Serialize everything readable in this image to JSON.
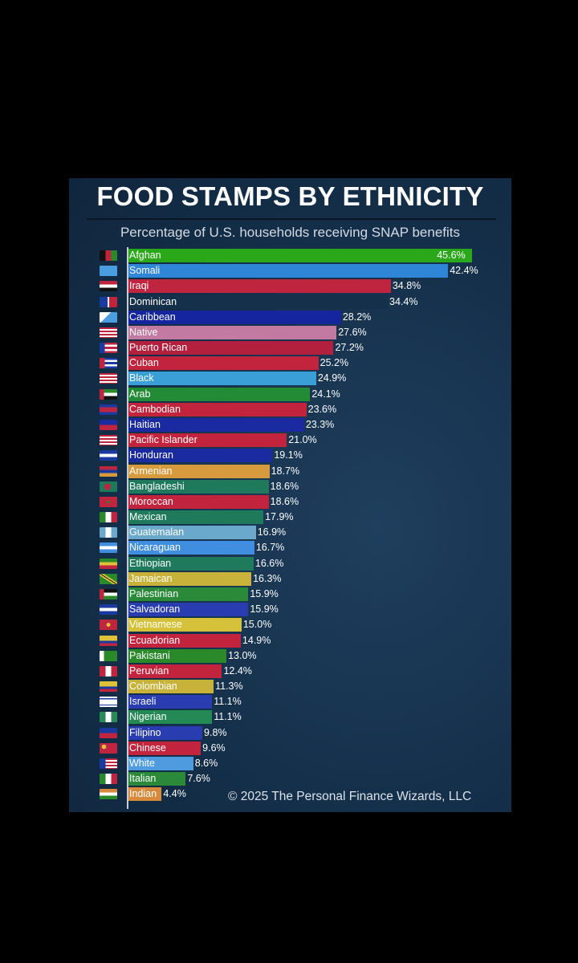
{
  "chart_data": {
    "type": "bar",
    "orientation": "horizontal",
    "title": "FOOD STAMPS BY ETHNICITY",
    "subtitle": "Percentage of U.S. households receiving SNAP benefits",
    "credit": "© 2025 The Personal Finance Wizards, LLC",
    "value_suffix": "%",
    "categories": [
      "Afghan",
      "Somali",
      "Iraqi",
      "Dominican",
      "Caribbean",
      "Native",
      "Puerto Rican",
      "Cuban",
      "Black",
      "Arab",
      "Cambodian",
      "Haitian",
      "Pacific Islander",
      "Honduran",
      "Armenian",
      "Bangladeshi",
      "Moroccan",
      "Mexican",
      "Guatemalan",
      "Nicaraguan",
      "Ethiopian",
      "Jamaican",
      "Palestinian",
      "Salvadoran",
      "Vietnamese",
      "Ecuadorian",
      "Pakistani",
      "Peruvian",
      "Colombian",
      "Israeli",
      "Nigerian",
      "Filipino",
      "Chinese",
      "White",
      "Italian",
      "Indian"
    ],
    "values": [
      45.6,
      42.4,
      34.8,
      34.4,
      28.2,
      27.6,
      27.2,
      25.2,
      24.9,
      24.1,
      23.6,
      23.3,
      21.0,
      19.1,
      18.7,
      18.6,
      18.6,
      17.9,
      16.9,
      16.7,
      16.6,
      16.3,
      15.9,
      15.9,
      15.0,
      14.9,
      13.0,
      12.4,
      11.3,
      11.1,
      11.1,
      9.8,
      9.6,
      8.6,
      7.6,
      4.4
    ],
    "labels": [
      "45.6%",
      "42.4%",
      "34.8%",
      "34.4%",
      "28.2%",
      "27.6%",
      "27.2%",
      "25.2%",
      "24.9%",
      "24.1%",
      "23.6%",
      "23.3%",
      "21.0%",
      "19.1%",
      "18.7%",
      "18.6%",
      "18.6%",
      "17.9%",
      "16.9%",
      "16.7%",
      "16.6%",
      "16.3%",
      "15.9%",
      "15.9%",
      "15.0%",
      "14.9%",
      "13.0%",
      "12.4%",
      "11.3%",
      "11.1%",
      "11.1%",
      "9.8%",
      "9.6%",
      "8.6%",
      "7.6%",
      "4.4%"
    ],
    "bar_colors": [
      "#2aa81a",
      "#2f86d6",
      "#c0253f",
      "#15304b",
      "#14259e",
      "#c27aa0",
      "#b3203e",
      "#c2243e",
      "#3a9fd6",
      "#238a35",
      "#c2243e",
      "#1a2aa0",
      "#c2243e",
      "#1a2aa0",
      "#d79a3c",
      "#1f7a5c",
      "#c2243e",
      "#1f7a5c",
      "#6aa8cc",
      "#3f8ee0",
      "#1f7a5c",
      "#c9b23a",
      "#2a8a3a",
      "#2a3db0",
      "#d6c23a",
      "#c2243e",
      "#2a8a2a",
      "#c2243e",
      "#c9b23a",
      "#2a3db0",
      "#238a55",
      "#2a3db0",
      "#c2243e",
      "#4f9be0",
      "#2a8a3a",
      "#d78a3c"
    ],
    "xlim": [
      0,
      46
    ],
    "grid": false,
    "legend": "none"
  }
}
